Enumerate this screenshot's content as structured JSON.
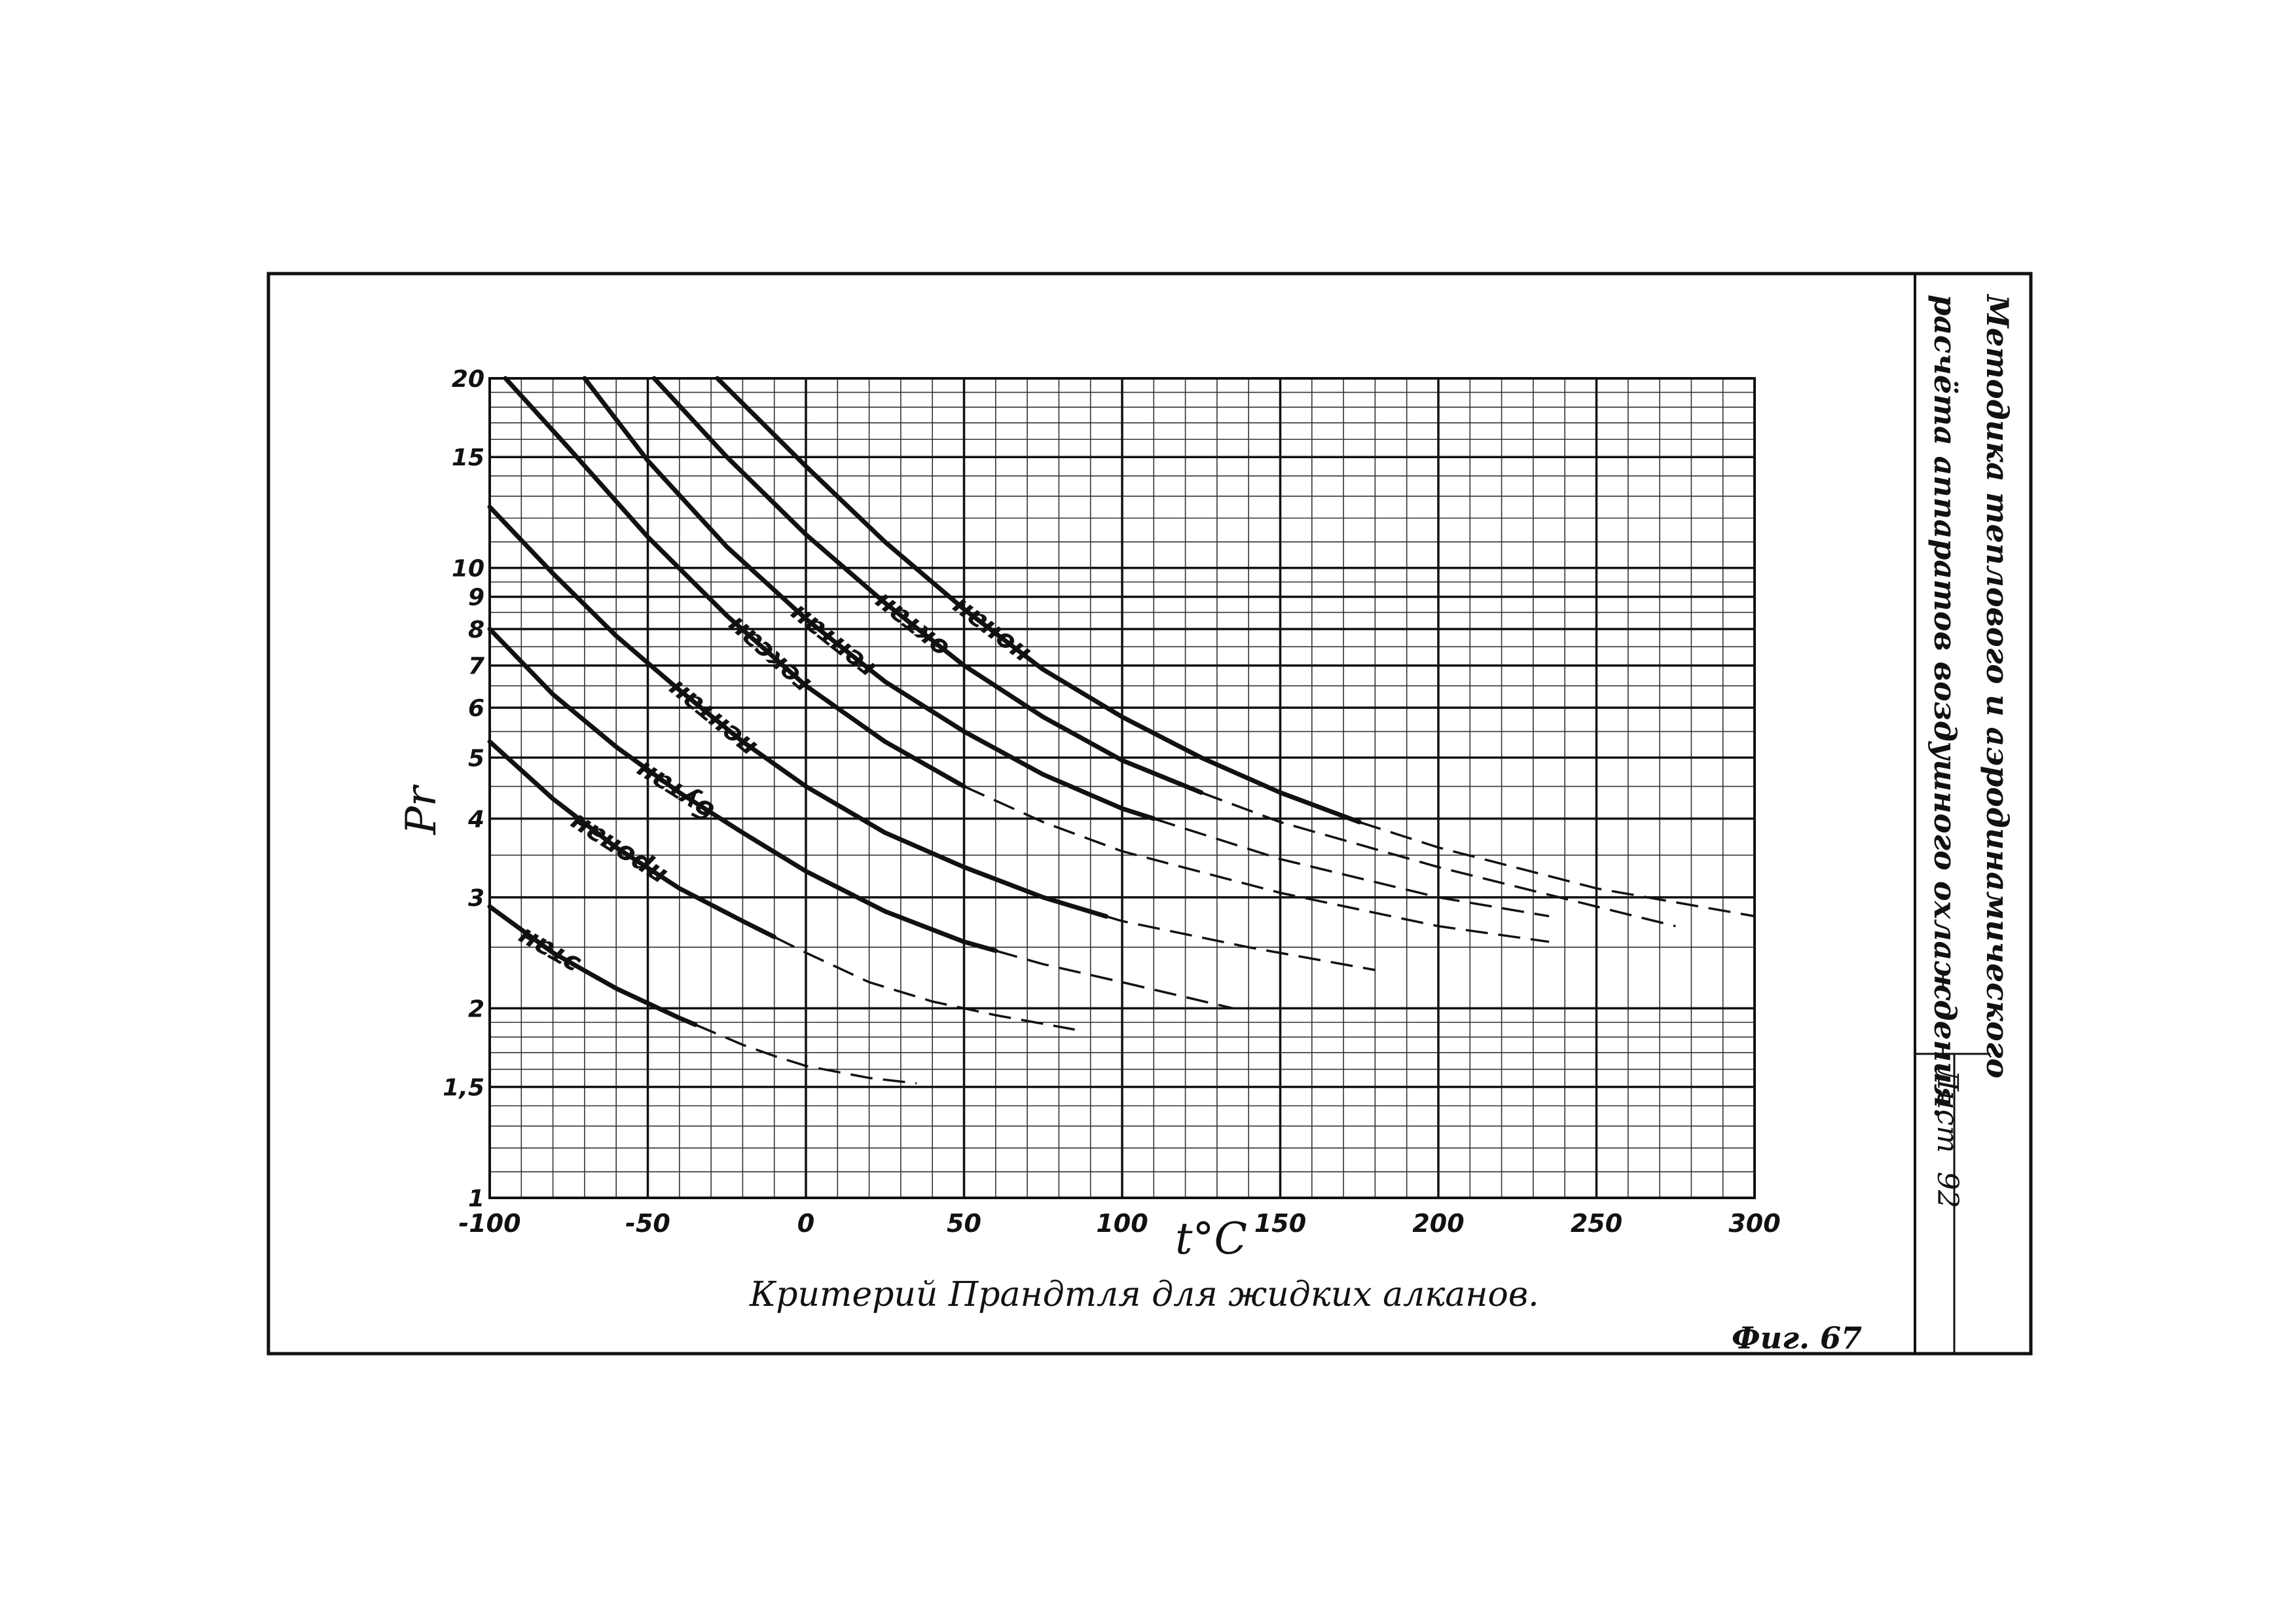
{
  "sheet": {
    "title_line1": "Методика теплового и аэродинамического",
    "title_line2": "расчёта аппаратов воздушного охлаждения.",
    "sheet_label": "Лист",
    "sheet_number": "92",
    "figure_label": "Фиг. 67"
  },
  "chart_data": {
    "type": "line",
    "title": "Критерий Прандтля для жидких алканов.",
    "xlabel": "t°C",
    "ylabel": "Pr",
    "xlim": [
      -100,
      300
    ],
    "ylim": [
      1,
      20
    ],
    "yscale": "log",
    "grid": true,
    "x_ticks": [
      -100,
      -50,
      0,
      50,
      100,
      150,
      200,
      250,
      300
    ],
    "x_tick_labels": [
      "-100",
      "-50",
      "0",
      "50",
      "100",
      "150",
      "200",
      "250",
      "300"
    ],
    "y_ticks": [
      1,
      1.5,
      2,
      3,
      4,
      5,
      6,
      7,
      8,
      9,
      10,
      15,
      20
    ],
    "y_tick_labels": [
      "1",
      "1,5",
      "2",
      "3",
      "4",
      "5",
      "6",
      "7",
      "8",
      "9",
      "10",
      "15",
      "20"
    ],
    "line_color": "#111111",
    "series": [
      {
        "name": "этан",
        "x": [
          -100,
          -80,
          -60,
          -40,
          -20,
          -10,
          0,
          20,
          35
        ],
        "y": [
          2.9,
          2.45,
          2.15,
          1.93,
          1.75,
          1.68,
          1.62,
          1.55,
          1.52
        ],
        "dashed_from": -35
      },
      {
        "name": "пропан",
        "x": [
          -100,
          -80,
          -60,
          -40,
          -20,
          0,
          20,
          40,
          60,
          85
        ],
        "y": [
          5.3,
          4.3,
          3.6,
          3.1,
          2.75,
          2.45,
          2.2,
          2.05,
          1.95,
          1.85
        ],
        "dashed_from": -10
      },
      {
        "name": "бутан",
        "x": [
          -100,
          -80,
          -60,
          -40,
          -20,
          0,
          25,
          50,
          75,
          100,
          135
        ],
        "y": [
          8.0,
          6.3,
          5.2,
          4.4,
          3.8,
          3.3,
          2.85,
          2.55,
          2.35,
          2.2,
          2.0
        ],
        "dashed_from": 60
      },
      {
        "name": "пентан",
        "x": [
          -100,
          -80,
          -60,
          -40,
          -20,
          0,
          25,
          50,
          75,
          100,
          140,
          180
        ],
        "y": [
          12.5,
          9.8,
          7.8,
          6.4,
          5.3,
          4.5,
          3.8,
          3.35,
          3.0,
          2.75,
          2.5,
          2.3
        ],
        "dashed_from": 95
      },
      {
        "name": "гексан",
        "x": [
          -95,
          -75,
          -50,
          -25,
          0,
          25,
          50,
          75,
          100,
          150,
          200,
          235
        ],
        "y": [
          20,
          15.5,
          11.2,
          8.4,
          6.5,
          5.3,
          4.5,
          3.95,
          3.55,
          3.05,
          2.7,
          2.55
        ],
        "dashed_from": 50
      },
      {
        "name": "гептан",
        "x": [
          -70,
          -50,
          -25,
          0,
          25,
          50,
          75,
          100,
          150,
          200,
          235
        ],
        "y": [
          20,
          14.8,
          10.8,
          8.3,
          6.6,
          5.5,
          4.7,
          4.15,
          3.45,
          3.0,
          2.8
        ],
        "dashed_from": 110
      },
      {
        "name": "октан",
        "x": [
          -48,
          -25,
          0,
          25,
          50,
          75,
          100,
          125,
          150,
          200,
          250,
          275
        ],
        "y": [
          20,
          15.0,
          11.3,
          8.8,
          7.0,
          5.8,
          4.95,
          4.4,
          3.95,
          3.35,
          2.9,
          2.7
        ],
        "dashed_from": 125
      },
      {
        "name": "нонан",
        "x": [
          -28,
          0,
          25,
          50,
          75,
          100,
          125,
          150,
          175,
          200,
          250,
          300
        ],
        "y": [
          20,
          14.5,
          11.0,
          8.6,
          6.9,
          5.8,
          5.0,
          4.4,
          3.95,
          3.6,
          3.1,
          2.8
        ],
        "dashed_from": 175
      }
    ]
  }
}
